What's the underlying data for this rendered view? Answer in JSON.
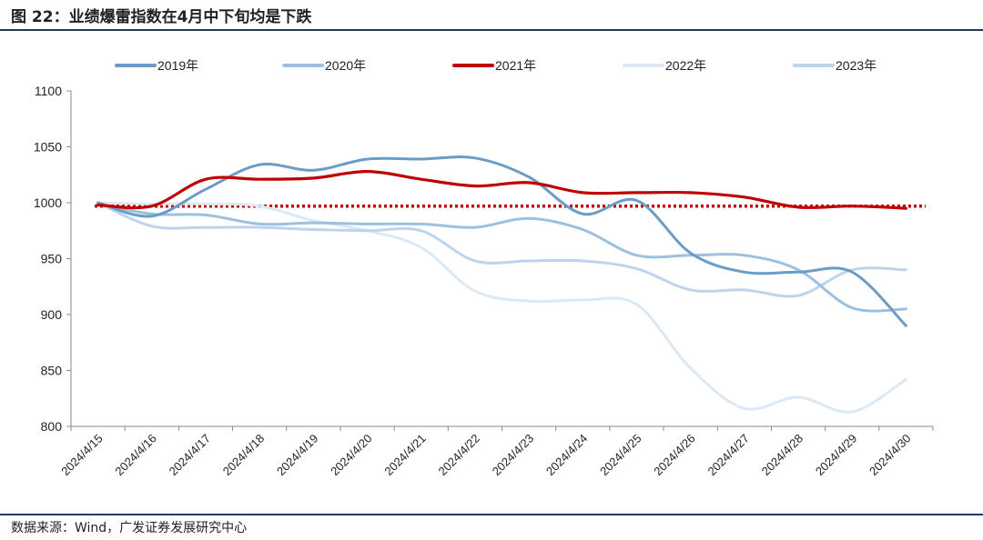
{
  "figure_title": "图 22：业绩爆雷指数在4月中下旬均是下跌",
  "source_note": "数据来源：Wind，广发证券发展研究中心",
  "chart_data": {
    "type": "line",
    "categories": [
      "2024/4/15",
      "2024/4/16",
      "2024/4/17",
      "2024/4/18",
      "2024/4/19",
      "2024/4/20",
      "2024/4/21",
      "2024/4/22",
      "2024/4/23",
      "2024/4/24",
      "2024/4/25",
      "2024/4/26",
      "2024/4/27",
      "2024/4/28",
      "2024/4/29",
      "2024/4/30"
    ],
    "ylim": [
      800,
      1100
    ],
    "yticks": [
      800,
      850,
      900,
      950,
      1000,
      1050,
      1100
    ],
    "grid": false,
    "legend_position": "top",
    "reference_line": {
      "value": 997,
      "color": "#c00000",
      "style": "dotted"
    },
    "series": [
      {
        "name": "2019年",
        "color": "#6a9cc8",
        "width": 3,
        "values": [
          1000,
          988,
          1012,
          1034,
          1029,
          1039,
          1039,
          1040,
          1023,
          990,
          1002,
          955,
          938,
          938,
          938,
          890
        ]
      },
      {
        "name": "2020年",
        "color": "#9dbfe0",
        "width": 3,
        "values": [
          999,
          990,
          989,
          981,
          982,
          981,
          981,
          978,
          986,
          976,
          953,
          953,
          953,
          940,
          906,
          905
        ]
      },
      {
        "name": "2021年",
        "color": "#c00000",
        "width": 3.2,
        "values": [
          998,
          997,
          1021,
          1021,
          1022,
          1028,
          1021,
          1015,
          1018,
          1009,
          1009,
          1009,
          1005,
          996,
          997,
          995
        ]
      },
      {
        "name": "2022年",
        "color": "#dce9f5",
        "width": 3,
        "values": [
          1000,
          999,
          999,
          997,
          984,
          975,
          960,
          921,
          912,
          913,
          909,
          852,
          816,
          826,
          813,
          842
        ]
      },
      {
        "name": "2023年",
        "color": "#bcd4ec",
        "width": 3,
        "values": [
          1000,
          979,
          978,
          978,
          976,
          975,
          975,
          948,
          948,
          948,
          941,
          922,
          922,
          917,
          940,
          940
        ]
      }
    ]
  }
}
